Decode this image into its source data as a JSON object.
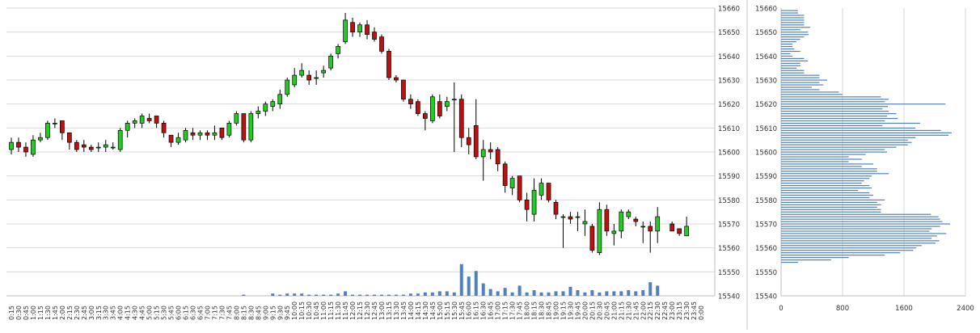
{
  "chart_data": [
    {
      "type": "candlestick",
      "title": "",
      "xlabel": "",
      "ylabel": "",
      "ylim": [
        15540,
        15660
      ],
      "yticks": [
        15540,
        15550,
        15560,
        15570,
        15580,
        15590,
        15600,
        15610,
        15620,
        15630,
        15640,
        15650,
        15660
      ],
      "grid": true,
      "up_color": "#22cc22",
      "down_color": "#bb1111",
      "volume_color": "#4f81bd",
      "x_labels": [
        "0:15",
        "0:30",
        "0:45",
        "1:00",
        "1:15",
        "1:30",
        "1:45",
        "2:00",
        "2:15",
        "2:30",
        "2:45",
        "3:00",
        "3:15",
        "3:30",
        "3:45",
        "4:00",
        "4:15",
        "4:30",
        "4:45",
        "5:00",
        "5:15",
        "5:30",
        "5:45",
        "6:00",
        "6:15",
        "6:30",
        "6:45",
        "7:00",
        "7:15",
        "7:30",
        "7:45",
        "8:00",
        "8:15",
        "8:30",
        "8:45",
        "9:00",
        "9:15",
        "9:30",
        "9:45",
        "10:00",
        "10:15",
        "10:30",
        "10:45",
        "11:00",
        "11:15",
        "11:30",
        "11:45",
        "12:00",
        "12:15",
        "12:30",
        "12:45",
        "13:00",
        "13:15",
        "13:30",
        "13:45",
        "14:00",
        "14:15",
        "14:30",
        "14:45",
        "15:00",
        "15:15",
        "15:30",
        "15:45",
        "16:00",
        "16:15",
        "16:30",
        "16:45",
        "17:00",
        "17:15",
        "17:30",
        "17:45",
        "18:00",
        "18:15",
        "18:30",
        "18:45",
        "19:00",
        "19:15",
        "19:30",
        "19:45",
        "20:00",
        "20:15",
        "20:30",
        "20:45",
        "21:00",
        "21:15",
        "21:30",
        "21:45",
        "22:00",
        "22:15",
        "22:30",
        "22:45",
        "23:00",
        "23:15",
        "23:30",
        "23:45",
        "0:00"
      ],
      "candles": [
        {
          "t": "0:15",
          "o": 15601,
          "h": 15606,
          "l": 15599,
          "c": 15604
        },
        {
          "t": "0:30",
          "o": 15604,
          "h": 15606,
          "l": 15600,
          "c": 15602
        },
        {
          "t": "0:45",
          "o": 15602,
          "h": 15604,
          "l": 15598,
          "c": 15600
        },
        {
          "t": "1:00",
          "o": 15599,
          "h": 15607,
          "l": 15598,
          "c": 15605
        },
        {
          "t": "1:15",
          "o": 15605,
          "h": 15608,
          "l": 15604,
          "c": 15606
        },
        {
          "t": "1:30",
          "o": 15606,
          "h": 15613,
          "l": 15605,
          "c": 15612
        },
        {
          "t": "1:45",
          "o": 15612,
          "h": 15614,
          "l": 15610,
          "c": 15612
        },
        {
          "t": "2:00",
          "o": 15613,
          "h": 15613,
          "l": 15605,
          "c": 15608
        },
        {
          "t": "2:15",
          "o": 15608,
          "h": 15608,
          "l": 15601,
          "c": 15604
        },
        {
          "t": "2:30",
          "o": 15604,
          "h": 15605,
          "l": 15600,
          "c": 15601
        },
        {
          "t": "2:45",
          "o": 15603,
          "h": 15605,
          "l": 15600,
          "c": 15602
        },
        {
          "t": "3:00",
          "o": 15602,
          "h": 15603,
          "l": 15600,
          "c": 15601
        },
        {
          "t": "3:15",
          "o": 15602,
          "h": 15604,
          "l": 15600,
          "c": 15602
        },
        {
          "t": "3:30",
          "o": 15602,
          "h": 15605,
          "l": 15600,
          "c": 15603
        },
        {
          "t": "3:45",
          "o": 15602,
          "h": 15604,
          "l": 15601,
          "c": 15602
        },
        {
          "t": "4:00",
          "o": 15601,
          "h": 15610,
          "l": 15600,
          "c": 15609
        },
        {
          "t": "4:15",
          "o": 15609,
          "h": 15613,
          "l": 15606,
          "c": 15612
        },
        {
          "t": "4:30",
          "o": 15612,
          "h": 15614,
          "l": 15610,
          "c": 15613
        },
        {
          "t": "4:45",
          "o": 15612,
          "h": 15616,
          "l": 15610,
          "c": 15615
        },
        {
          "t": "5:00",
          "o": 15614,
          "h": 15616,
          "l": 15612,
          "c": 15613
        },
        {
          "t": "5:15",
          "o": 15615,
          "h": 15615,
          "l": 15610,
          "c": 15612
        },
        {
          "t": "5:30",
          "o": 15612,
          "h": 15613,
          "l": 15606,
          "c": 15608
        },
        {
          "t": "5:45",
          "o": 15607,
          "h": 15607,
          "l": 15602,
          "c": 15604
        },
        {
          "t": "6:00",
          "o": 15604,
          "h": 15608,
          "l": 15603,
          "c": 15606
        },
        {
          "t": "6:15",
          "o": 15605,
          "h": 15610,
          "l": 15604,
          "c": 15609
        },
        {
          "t": "6:30",
          "o": 15608,
          "h": 15610,
          "l": 15605,
          "c": 15607
        },
        {
          "t": "6:45",
          "o": 15607,
          "h": 15609,
          "l": 15605,
          "c": 15608
        },
        {
          "t": "7:00",
          "o": 15608,
          "h": 15609,
          "l": 15605,
          "c": 15607
        },
        {
          "t": "7:15",
          "o": 15607,
          "h": 15611,
          "l": 15605,
          "c": 15608
        },
        {
          "t": "7:30",
          "o": 15610,
          "h": 15610,
          "l": 15605,
          "c": 15606
        },
        {
          "t": "7:45",
          "o": 15607,
          "h": 15613,
          "l": 15606,
          "c": 15612
        },
        {
          "t": "8:00",
          "o": 15612,
          "h": 15617,
          "l": 15611,
          "c": 15616
        },
        {
          "t": "8:15",
          "o": 15616,
          "h": 15616,
          "l": 15604,
          "c": 15605
        },
        {
          "t": "8:30",
          "o": 15605,
          "h": 15617,
          "l": 15604,
          "c": 15616
        },
        {
          "t": "8:45",
          "o": 15616,
          "h": 15619,
          "l": 15614,
          "c": 15617
        },
        {
          "t": "9:00",
          "o": 15617,
          "h": 15621,
          "l": 15615,
          "c": 15620
        },
        {
          "t": "9:15",
          "o": 15619,
          "h": 15622,
          "l": 15617,
          "c": 15621
        },
        {
          "t": "9:30",
          "o": 15620,
          "h": 15626,
          "l": 15618,
          "c": 15624
        },
        {
          "t": "9:45",
          "o": 15624,
          "h": 15631,
          "l": 15623,
          "c": 15630
        },
        {
          "t": "10:00",
          "o": 15628,
          "h": 15635,
          "l": 15627,
          "c": 15632
        },
        {
          "t": "10:15",
          "o": 15632,
          "h": 15637,
          "l": 15631,
          "c": 15634
        },
        {
          "t": "10:30",
          "o": 15632,
          "h": 15634,
          "l": 15628,
          "c": 15630
        },
        {
          "t": "10:45",
          "o": 15631,
          "h": 15634,
          "l": 15628,
          "c": 15631
        },
        {
          "t": "11:00",
          "o": 15633,
          "h": 15636,
          "l": 15631,
          "c": 15634
        },
        {
          "t": "11:15",
          "o": 15635,
          "h": 15641,
          "l": 15634,
          "c": 15640
        },
        {
          "t": "11:30",
          "o": 15641,
          "h": 15645,
          "l": 15639,
          "c": 15644
        },
        {
          "t": "11:45",
          "o": 15646,
          "h": 15658,
          "l": 15645,
          "c": 15655
        },
        {
          "t": "12:00",
          "o": 15654,
          "h": 15656,
          "l": 15648,
          "c": 15650
        },
        {
          "t": "12:15",
          "o": 15650,
          "h": 15654,
          "l": 15648,
          "c": 15653
        },
        {
          "t": "12:30",
          "o": 15653,
          "h": 15655,
          "l": 15647,
          "c": 15649
        },
        {
          "t": "12:45",
          "o": 15650,
          "h": 15652,
          "l": 15646,
          "c": 15647
        },
        {
          "t": "13:00",
          "o": 15648,
          "h": 15649,
          "l": 15641,
          "c": 15642
        },
        {
          "t": "13:15",
          "o": 15642,
          "h": 15643,
          "l": 15630,
          "c": 15631
        },
        {
          "t": "13:30",
          "o": 15631,
          "h": 15632,
          "l": 15629,
          "c": 15630
        },
        {
          "t": "13:45",
          "o": 15630,
          "h": 15630,
          "l": 15621,
          "c": 15622
        },
        {
          "t": "14:00",
          "o": 15622,
          "h": 15624,
          "l": 15618,
          "c": 15620
        },
        {
          "t": "14:15",
          "o": 15621,
          "h": 15622,
          "l": 15615,
          "c": 15616
        },
        {
          "t": "14:30",
          "o": 15616,
          "h": 15617,
          "l": 15609,
          "c": 15614
        },
        {
          "t": "14:45",
          "o": 15613,
          "h": 15624,
          "l": 15612,
          "c": 15623
        },
        {
          "t": "15:00",
          "o": 15621,
          "h": 15624,
          "l": 15614,
          "c": 15615
        },
        {
          "t": "15:15",
          "o": 15619,
          "h": 15623,
          "l": 15617,
          "c": 15621
        },
        {
          "t": "15:30",
          "o": 15622,
          "h": 15629,
          "l": 15600,
          "c": 15622
        },
        {
          "t": "15:45",
          "o": 15622,
          "h": 15624,
          "l": 15602,
          "c": 15606
        },
        {
          "t": "16:00",
          "o": 15606,
          "h": 15610,
          "l": 15599,
          "c": 15603
        },
        {
          "t": "16:15",
          "o": 15611,
          "h": 15622,
          "l": 15597,
          "c": 15598
        },
        {
          "t": "16:30",
          "o": 15598,
          "h": 15605,
          "l": 15588,
          "c": 15601
        },
        {
          "t": "16:45",
          "o": 15601,
          "h": 15604,
          "l": 15597,
          "c": 15600
        },
        {
          "t": "17:00",
          "o": 15601,
          "h": 15602,
          "l": 15592,
          "c": 15595
        },
        {
          "t": "17:15",
          "o": 15595,
          "h": 15596,
          "l": 15583,
          "c": 15586
        },
        {
          "t": "17:30",
          "o": 15585,
          "h": 15590,
          "l": 15582,
          "c": 15589
        },
        {
          "t": "17:45",
          "o": 15590,
          "h": 15590,
          "l": 15579,
          "c": 15580
        },
        {
          "t": "18:00",
          "o": 15580,
          "h": 15583,
          "l": 15571,
          "c": 15576
        },
        {
          "t": "18:15",
          "o": 15574,
          "h": 15589,
          "l": 15571,
          "c": 15584
        },
        {
          "t": "18:30",
          "o": 15582,
          "h": 15589,
          "l": 15580,
          "c": 15587
        },
        {
          "t": "18:45",
          "o": 15587,
          "h": 15587,
          "l": 15579,
          "c": 15580
        },
        {
          "t": "19:00",
          "o": 15579,
          "h": 15580,
          "l": 15572,
          "c": 15574
        },
        {
          "t": "19:15",
          "o": 15573,
          "h": 15574,
          "l": 15560,
          "c": 15573
        },
        {
          "t": "19:30",
          "o": 15573,
          "h": 15575,
          "l": 15570,
          "c": 15572
        },
        {
          "t": "19:45",
          "o": 15573,
          "h": 15575,
          "l": 15567,
          "c": 15573
        },
        {
          "t": "20:00",
          "o": 15570,
          "h": 15576,
          "l": 15565,
          "c": 15571
        },
        {
          "t": "20:15",
          "o": 15569,
          "h": 15570,
          "l": 15558,
          "c": 15559
        },
        {
          "t": "20:30",
          "o": 15558,
          "h": 15579,
          "l": 15557,
          "c": 15576
        },
        {
          "t": "20:45",
          "o": 15576,
          "h": 15578,
          "l": 15565,
          "c": 15567
        },
        {
          "t": "21:00",
          "o": 15566,
          "h": 15570,
          "l": 15561,
          "c": 15567
        },
        {
          "t": "21:15",
          "o": 15567,
          "h": 15576,
          "l": 15564,
          "c": 15575
        },
        {
          "t": "21:30",
          "o": 15573,
          "h": 15576,
          "l": 15572,
          "c": 15575
        },
        {
          "t": "21:45",
          "o": 15572,
          "h": 15573,
          "l": 15569,
          "c": 15571
        },
        {
          "t": "22:00",
          "o": 15569,
          "h": 15571,
          "l": 15562,
          "c": 15569
        },
        {
          "t": "22:15",
          "o": 15569,
          "h": 15571,
          "l": 15558,
          "c": 15567
        },
        {
          "t": "22:30",
          "o": 15567,
          "h": 15577,
          "l": 15562,
          "c": 15573
        },
        {
          "t": "22:45",
          "o": null,
          "h": null,
          "l": null,
          "c": null
        },
        {
          "t": "23:00",
          "o": 15570,
          "h": 15571,
          "l": 15567,
          "c": 15567
        },
        {
          "t": "23:15",
          "o": 15568,
          "h": 15568,
          "l": 15565,
          "c": 15566
        },
        {
          "t": "23:30",
          "o": 15565,
          "h": 15573,
          "l": 15565,
          "c": 15569
        },
        {
          "t": "23:45",
          "o": null,
          "h": null,
          "l": null,
          "c": null
        },
        {
          "t": "0:00",
          "o": null,
          "h": null,
          "l": null,
          "c": null
        }
      ],
      "volume": [
        0,
        0,
        0,
        0,
        0,
        0,
        0,
        0,
        0,
        0,
        0,
        0,
        0,
        0,
        0,
        0,
        0,
        0,
        0,
        0,
        0,
        0,
        0,
        0,
        0,
        0,
        0,
        0,
        0,
        0,
        0,
        0,
        1,
        0,
        0,
        0,
        2,
        1,
        2,
        2,
        2,
        1,
        1,
        1,
        1,
        2,
        4,
        1,
        1,
        1,
        1,
        1,
        1,
        1,
        1,
        2,
        2,
        3,
        3,
        4,
        4,
        3,
        28,
        17,
        22,
        11,
        6,
        4,
        7,
        3,
        9,
        3,
        5,
        3,
        3,
        4,
        4,
        8,
        5,
        3,
        5,
        3,
        4,
        4,
        4,
        5,
        4,
        5,
        12,
        9,
        0,
        0,
        0,
        0,
        0,
        0
      ]
    },
    {
      "type": "horizontal-bar",
      "title": "",
      "xlabel": "",
      "ylabel": "",
      "xlim": [
        0,
        2400
      ],
      "xticks": [
        0,
        800,
        1600,
        2400
      ],
      "ylim": [
        15540,
        15660
      ],
      "yticks": [
        15540,
        15550,
        15560,
        15570,
        15580,
        15590,
        15600,
        15610,
        15620,
        15630,
        15640,
        15650,
        15660
      ],
      "grid": true,
      "bar_color": "#4f81bd",
      "prices": [
        15554,
        15555,
        15556,
        15557,
        15558,
        15559,
        15560,
        15561,
        15562,
        15563,
        15564,
        15565,
        15566,
        15567,
        15568,
        15569,
        15570,
        15571,
        15572,
        15573,
        15574,
        15575,
        15576,
        15577,
        15578,
        15579,
        15580,
        15581,
        15582,
        15583,
        15584,
        15585,
        15586,
        15587,
        15588,
        15589,
        15590,
        15591,
        15592,
        15593,
        15594,
        15595,
        15596,
        15597,
        15598,
        15599,
        15600,
        15601,
        15602,
        15603,
        15604,
        15605,
        15606,
        15607,
        15608,
        15609,
        15610,
        15611,
        15612,
        15613,
        15614,
        15615,
        15616,
        15617,
        15618,
        15619,
        15620,
        15621,
        15622,
        15623,
        15624,
        15625,
        15626,
        15627,
        15628,
        15629,
        15630,
        15631,
        15632,
        15633,
        15634,
        15635,
        15636,
        15637,
        15638,
        15639,
        15640,
        15641,
        15642,
        15643,
        15644,
        15645,
        15646,
        15647,
        15648,
        15649,
        15650,
        15651,
        15652,
        15653,
        15654,
        15655,
        15656,
        15657,
        15658,
        15659
      ],
      "values": [
        220,
        650,
        880,
        1350,
        1550,
        1720,
        1760,
        1830,
        2010,
        2060,
        1960,
        2030,
        2150,
        1930,
        1960,
        2070,
        2200,
        2100,
        2070,
        2050,
        1950,
        1300,
        1300,
        1250,
        1300,
        1250,
        1350,
        1150,
        1200,
        1150,
        1000,
        1180,
        1150,
        1050,
        1080,
        1150,
        1180,
        1400,
        1250,
        1250,
        1050,
        1200,
        880,
        1050,
        880,
        1100,
        1380,
        1350,
        1500,
        1650,
        1700,
        1650,
        1750,
        2180,
        2220,
        2080,
        1750,
        1320,
        1810,
        1350,
        1520,
        1380,
        1500,
        1400,
        1320,
        1390,
        2140,
        1350,
        1400,
        1300,
        800,
        750,
        500,
        400,
        550,
        500,
        600,
        500,
        500,
        300,
        300,
        200,
        250,
        250,
        350,
        300,
        150,
        120,
        250,
        170,
        150,
        150,
        200,
        250,
        300,
        360,
        350,
        250,
        380,
        300,
        300,
        300,
        300,
        300,
        220,
        220
      ]
    }
  ]
}
